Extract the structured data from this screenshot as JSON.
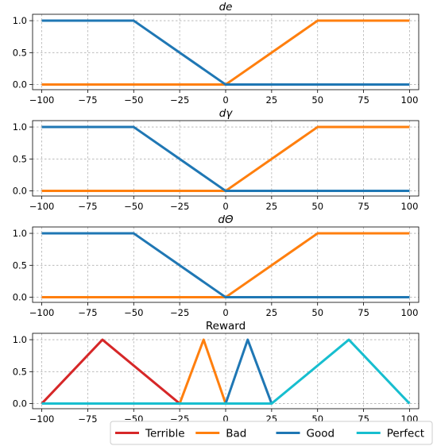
{
  "chart_data": [
    {
      "type": "line",
      "title": "de",
      "title_style": "italic",
      "xlim": [
        -105,
        105
      ],
      "ylim": [
        -0.08,
        1.1
      ],
      "xticks": [
        -100,
        -75,
        -50,
        -25,
        0,
        25,
        50,
        75,
        100
      ],
      "xtick_labels": [
        "−100",
        "−75",
        "−50",
        "−25",
        "0",
        "25",
        "50",
        "75",
        "100"
      ],
      "yticks": [
        0.0,
        0.5,
        1.0
      ],
      "ytick_labels": [
        "0.0",
        "0.5",
        "1.0"
      ],
      "grid": true,
      "series": [
        {
          "color": "#ff7f0e",
          "points": [
            [
              -100,
              0
            ],
            [
              0,
              0
            ],
            [
              50,
              1
            ],
            [
              100,
              1
            ]
          ]
        },
        {
          "color": "#1f77b4",
          "points": [
            [
              -100,
              1
            ],
            [
              -50,
              1
            ],
            [
              0,
              0
            ],
            [
              100,
              0
            ]
          ]
        }
      ]
    },
    {
      "type": "line",
      "title": "dγ",
      "title_style": "italic",
      "xlim": [
        -105,
        105
      ],
      "ylim": [
        -0.08,
        1.1
      ],
      "xticks": [
        -100,
        -75,
        -50,
        -25,
        0,
        25,
        50,
        75,
        100
      ],
      "xtick_labels": [
        "−100",
        "−75",
        "−50",
        "−25",
        "0",
        "25",
        "50",
        "75",
        "100"
      ],
      "yticks": [
        0.0,
        0.5,
        1.0
      ],
      "ytick_labels": [
        "0.0",
        "0.5",
        "1.0"
      ],
      "grid": true,
      "series": [
        {
          "color": "#ff7f0e",
          "points": [
            [
              -100,
              0
            ],
            [
              0,
              0
            ],
            [
              50,
              1
            ],
            [
              100,
              1
            ]
          ]
        },
        {
          "color": "#1f77b4",
          "points": [
            [
              -100,
              1
            ],
            [
              -50,
              1
            ],
            [
              0,
              0
            ],
            [
              100,
              0
            ]
          ]
        }
      ]
    },
    {
      "type": "line",
      "title": "dΘ",
      "title_style": "italic",
      "xlim": [
        -105,
        105
      ],
      "ylim": [
        -0.08,
        1.1
      ],
      "xticks": [
        -100,
        -75,
        -50,
        -25,
        0,
        25,
        50,
        75,
        100
      ],
      "xtick_labels": [
        "−100",
        "−75",
        "−50",
        "−25",
        "0",
        "25",
        "50",
        "75",
        "100"
      ],
      "yticks": [
        0.0,
        0.5,
        1.0
      ],
      "ytick_labels": [
        "0.0",
        "0.5",
        "1.0"
      ],
      "grid": true,
      "series": [
        {
          "color": "#ff7f0e",
          "points": [
            [
              -100,
              0
            ],
            [
              0,
              0
            ],
            [
              50,
              1
            ],
            [
              100,
              1
            ]
          ]
        },
        {
          "color": "#1f77b4",
          "points": [
            [
              -100,
              1
            ],
            [
              -50,
              1
            ],
            [
              0,
              0
            ],
            [
              100,
              0
            ]
          ]
        }
      ]
    },
    {
      "type": "line",
      "title": "Reward",
      "title_style": "normal",
      "xlim": [
        -105,
        105
      ],
      "ylim": [
        -0.08,
        1.1
      ],
      "xticks": [
        -100,
        -75,
        -50,
        -25,
        0,
        25,
        50,
        75,
        100
      ],
      "xtick_labels": [
        "−100",
        "−75",
        "−50",
        "−25",
        "0",
        "25",
        "50",
        "75",
        "100"
      ],
      "yticks": [
        0.0,
        0.5,
        1.0
      ],
      "ytick_labels": [
        "0.0",
        "0.5",
        "1.0"
      ],
      "grid": true,
      "legend": {
        "placement": "lower-right",
        "columns": 4
      },
      "series": [
        {
          "name": "Terrible",
          "color": "#d62728",
          "points": [
            [
              -100,
              0
            ],
            [
              -67,
              1
            ],
            [
              -25,
              0
            ]
          ]
        },
        {
          "name": "Bad",
          "color": "#ff7f0e",
          "points": [
            [
              -25,
              0
            ],
            [
              -12,
              1
            ],
            [
              0,
              0
            ]
          ]
        },
        {
          "name": "Good",
          "color": "#1f77b4",
          "points": [
            [
              0,
              0
            ],
            [
              12,
              1
            ],
            [
              25,
              0
            ]
          ]
        },
        {
          "name": "Perfect",
          "color": "#17becf",
          "points": [
            [
              -100,
              0
            ],
            [
              25,
              0
            ],
            [
              67,
              1
            ],
            [
              100,
              0
            ]
          ]
        }
      ]
    }
  ]
}
